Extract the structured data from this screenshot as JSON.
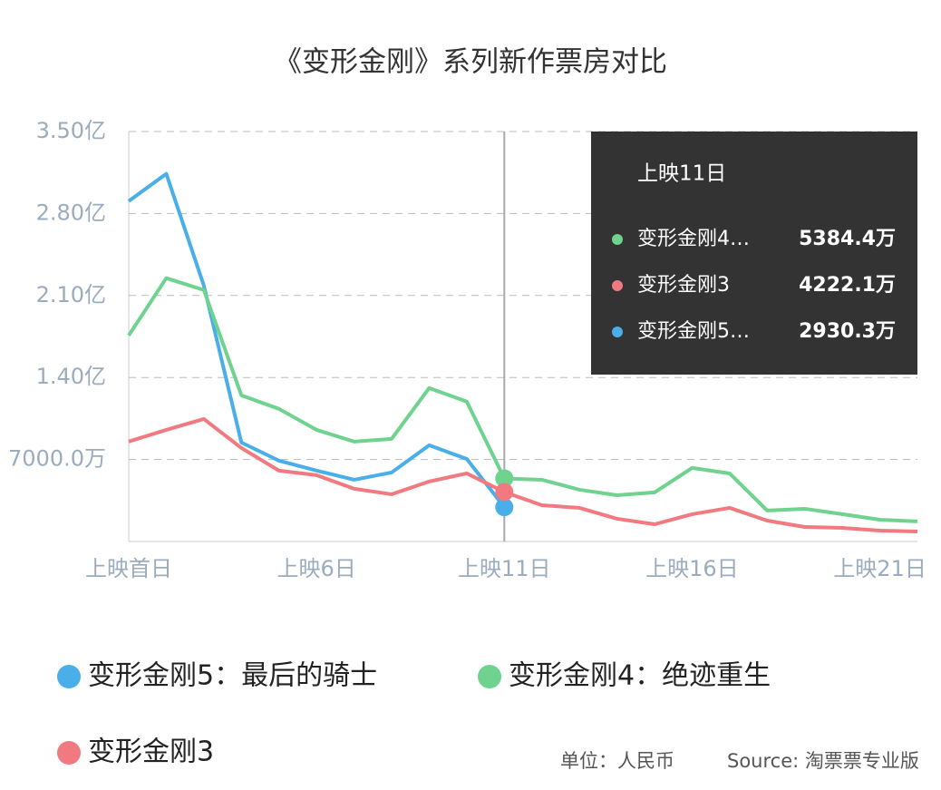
{
  "chart_data": {
    "type": "line",
    "title": "《变形金刚》系列新作票房对比",
    "categories": [
      "上映首日",
      null,
      null,
      null,
      null,
      "上映6日",
      null,
      null,
      null,
      null,
      "上映11日",
      null,
      null,
      null,
      null,
      "上映16日",
      null,
      null,
      null,
      null,
      "上映21日",
      null
    ],
    "series": [
      {
        "name": "变形金刚5：最后的骑士",
        "color": "#4aaee8",
        "values": [
          29060,
          31390,
          21850,
          8450,
          6900,
          6050,
          5270,
          5890,
          8220,
          7050,
          2930.3,
          null,
          null,
          null,
          null,
          null,
          null,
          null,
          null,
          null,
          null,
          null
        ]
      },
      {
        "name": "变形金刚4：绝迹重生",
        "color": "#6fd28e",
        "values": [
          17590,
          22480,
          21470,
          12480,
          11320,
          9530,
          8530,
          8760,
          13100,
          11940,
          5384.4,
          5270,
          4420,
          3950,
          4190,
          6280,
          5810,
          2640,
          2790,
          2330,
          1860,
          1710
        ]
      },
      {
        "name": "变形金刚3",
        "color": "#f07a80",
        "values": [
          8530,
          9530,
          10460,
          7980,
          6050,
          5660,
          4500,
          4030,
          5120,
          5810,
          4222.1,
          3100,
          2870,
          1940,
          1470,
          2330,
          2870,
          1780,
          1240,
          1160,
          930,
          850
        ]
      }
    ],
    "ylim": [
      0,
      35000
    ],
    "yticks": [
      {
        "value": 7000,
        "label": "7000.0万"
      },
      {
        "value": 14000,
        "label": "1.40亿"
      },
      {
        "value": 21000,
        "label": "2.10亿"
      },
      {
        "value": 28000,
        "label": "2.80亿"
      },
      {
        "value": 35000,
        "label": "3.50亿"
      }
    ],
    "grid": true,
    "tooltip": {
      "title": "上映11日",
      "rows": [
        {
          "name": "变形金刚4…",
          "label": "5384.4万",
          "color": "#6fd28e"
        },
        {
          "name": "变形金刚3",
          "label": "4222.1万",
          "color": "#f07a80"
        },
        {
          "name": "变形金刚5…",
          "label": "2930.3万",
          "color": "#4aaee8"
        }
      ]
    },
    "unit_note": "单位：人民币",
    "source": "Source: 淘票票专业版"
  }
}
